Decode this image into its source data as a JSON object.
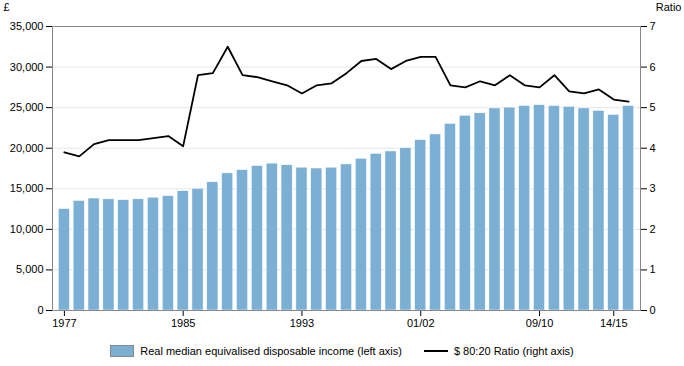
{
  "chart_data": {
    "type": "bar",
    "x": [
      1977,
      1978,
      1979,
      1980,
      1981,
      1982,
      1983,
      1984,
      1985,
      1986,
      1987,
      1988,
      1989,
      1990,
      1991,
      1992,
      1993,
      1994,
      1995,
      1996,
      1997,
      1998,
      1999,
      2000,
      2001,
      2002,
      2003,
      2004,
      2005,
      2006,
      2007,
      2008,
      2009,
      2010,
      2011,
      2012,
      2013,
      2014,
      2015
    ],
    "xlim": [
      1976.2,
      2015.8
    ],
    "xticks": [
      1977,
      1985,
      1993,
      {
        "value": 2001,
        "label": "01/02"
      },
      {
        "value": 2009,
        "label": "09/10"
      },
      {
        "value": 2014,
        "label": "14/15"
      }
    ],
    "ylabel": "£",
    "ylim": [
      0,
      35000
    ],
    "yticks": [
      0,
      {
        "value": 5000,
        "label": "5,000"
      },
      {
        "value": 10000,
        "label": "10,000"
      },
      {
        "value": 15000,
        "label": "15,000"
      },
      {
        "value": 20000,
        "label": "20,000"
      },
      {
        "value": 25000,
        "label": "25,000"
      },
      {
        "value": 30000,
        "label": "30,000"
      },
      {
        "value": 35000,
        "label": "35,000"
      }
    ],
    "y2label": "Ratio",
    "y2lim": [
      0,
      7
    ],
    "y2ticks": [
      0,
      1,
      2,
      3,
      4,
      5,
      6,
      7
    ],
    "grid": true,
    "legend": "bottom",
    "series": [
      {
        "name": "Real median equivalised disposable income (left axis)",
        "type": "bar",
        "color": "#7BAFD4",
        "values": [
          12500,
          13500,
          13800,
          13700,
          13600,
          13700,
          13900,
          14100,
          14700,
          15000,
          15800,
          16900,
          17300,
          17800,
          18100,
          17900,
          17600,
          17500,
          17600,
          18000,
          18700,
          19300,
          19600,
          20000,
          21000,
          21700,
          23000,
          24000,
          24300,
          24900,
          25000,
          25200,
          25300,
          25200,
          25100,
          24900,
          24600,
          24100,
          25200
        ]
      },
      {
        "name": "$ 80:20 Ratio (right axis)",
        "type": "line",
        "color": "#000000",
        "axis": "y2",
        "values": [
          3.9,
          3.8,
          4.1,
          4.2,
          4.2,
          4.2,
          4.25,
          4.3,
          4.05,
          5.8,
          5.85,
          6.5,
          5.8,
          5.75,
          5.65,
          5.55,
          5.35,
          5.55,
          5.6,
          5.85,
          6.15,
          6.2,
          5.95,
          6.15,
          6.25,
          6.25,
          5.55,
          5.5,
          5.65,
          5.55,
          5.8,
          5.55,
          5.5,
          5.8,
          5.4,
          5.35,
          5.45,
          5.2,
          5.15
        ]
      }
    ]
  }
}
